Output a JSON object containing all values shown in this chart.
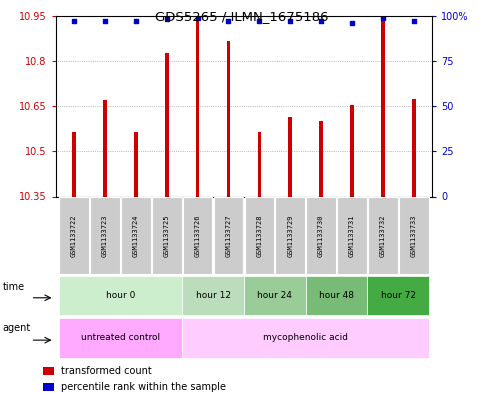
{
  "title": "GDS5265 / ILMN_1675186",
  "samples": [
    "GSM1133722",
    "GSM1133723",
    "GSM1133724",
    "GSM1133725",
    "GSM1133726",
    "GSM1133727",
    "GSM1133728",
    "GSM1133729",
    "GSM1133730",
    "GSM1133731",
    "GSM1133732",
    "GSM1133733"
  ],
  "bar_values": [
    10.565,
    10.67,
    10.565,
    10.825,
    10.935,
    10.865,
    10.565,
    10.615,
    10.6,
    10.655,
    10.945,
    10.675
  ],
  "percentile_values": [
    97,
    97,
    97,
    98,
    99,
    97,
    97,
    97,
    97,
    96,
    99,
    97
  ],
  "ylim_left": [
    10.35,
    10.95
  ],
  "ylim_right": [
    0,
    100
  ],
  "yticks_left": [
    10.35,
    10.5,
    10.65,
    10.8,
    10.95
  ],
  "yticks_right": [
    0,
    25,
    50,
    75,
    100
  ],
  "ytick_labels_left": [
    "10.35",
    "10.5",
    "10.65",
    "10.8",
    "10.95"
  ],
  "ytick_labels_right": [
    "0",
    "25",
    "50",
    "75",
    "100%"
  ],
  "bar_color": "#cc0000",
  "dot_color": "#0000cc",
  "bar_baseline": 10.35,
  "bar_width": 0.12,
  "time_groups": [
    {
      "label": "hour 0",
      "start": 0,
      "end": 4,
      "color": "#cceecc"
    },
    {
      "label": "hour 12",
      "start": 4,
      "end": 6,
      "color": "#bbddbb"
    },
    {
      "label": "hour 24",
      "start": 6,
      "end": 8,
      "color": "#99cc99"
    },
    {
      "label": "hour 48",
      "start": 8,
      "end": 10,
      "color": "#77bb77"
    },
    {
      "label": "hour 72",
      "start": 10,
      "end": 12,
      "color": "#44aa44"
    }
  ],
  "agent_groups": [
    {
      "label": "untreated control",
      "start": 0,
      "end": 4,
      "color": "#ffaaff"
    },
    {
      "label": "mycophenolic acid",
      "start": 4,
      "end": 12,
      "color": "#ffccff"
    }
  ],
  "bg_color": "#ffffff"
}
